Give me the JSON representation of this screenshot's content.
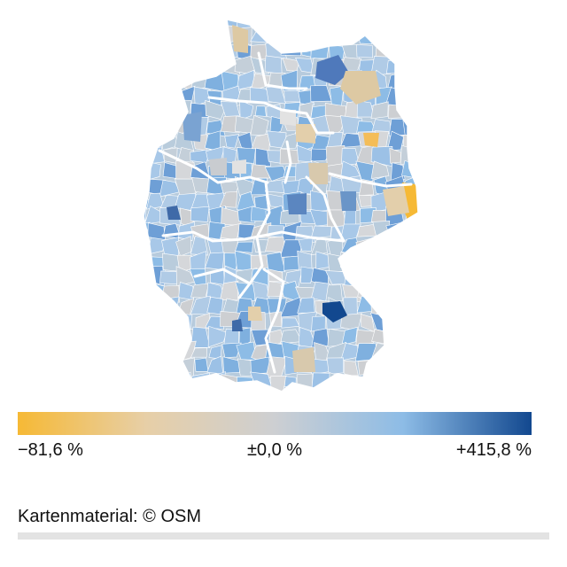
{
  "map": {
    "region": "Germany",
    "colors": {
      "min": "#f6b935",
      "neutral": "#cdcfd2",
      "light_blue": "#8dbce6",
      "max": "#12488f",
      "border": "#ffffff"
    }
  },
  "legend": {
    "min_label": "−81,6 %",
    "mid_label": "±0,0 %",
    "max_label": "+415,8 %",
    "min_value": -81.6,
    "mid_value": 0.0,
    "max_value": 415.8,
    "gradient": [
      "#f6b935",
      "#e7cfa7",
      "#cdcfd2",
      "#8dbce6",
      "#12488f"
    ]
  },
  "attribution": {
    "text": "Kartenmaterial: © OSM"
  }
}
